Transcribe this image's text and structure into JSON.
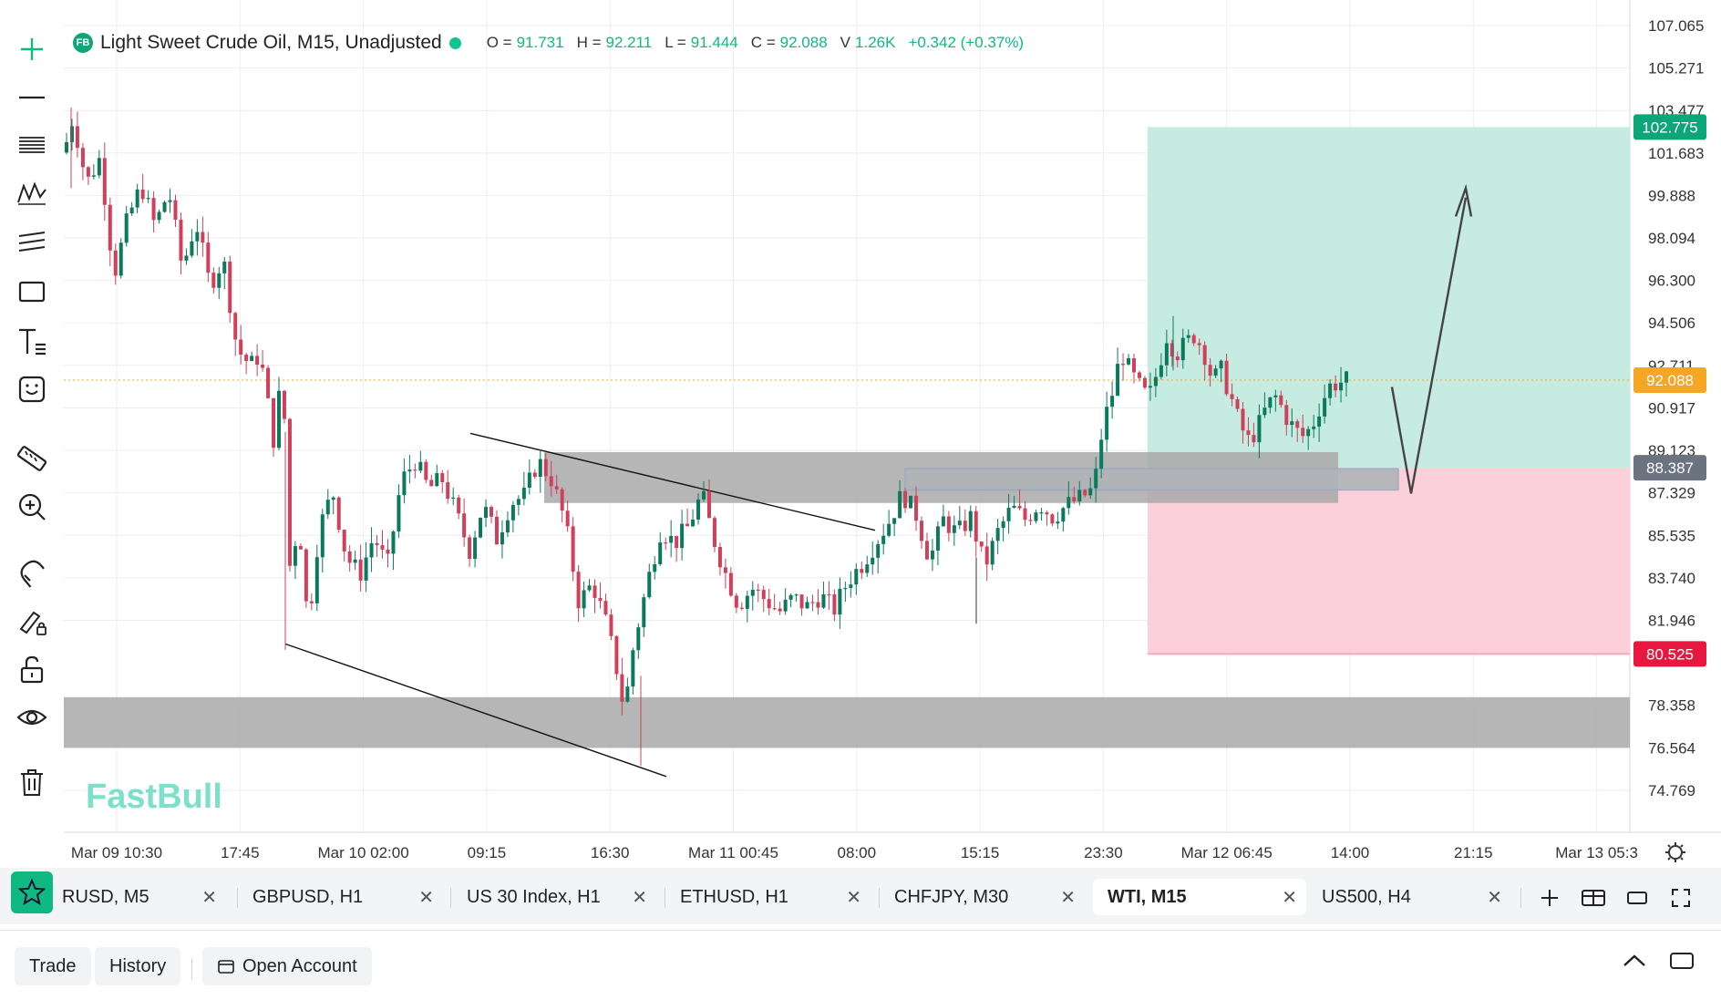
{
  "chart": {
    "symbol_badge": "FB",
    "title": "Light Sweet Crude Oil, M15, Unadjusted",
    "ohlc": [
      {
        "k": "O =",
        "v": "91.731"
      },
      {
        "k": "H =",
        "v": "92.211"
      },
      {
        "k": "L =",
        "v": "91.444"
      },
      {
        "k": "C =",
        "v": "92.088"
      },
      {
        "k": "V",
        "v": "1.26K"
      }
    ],
    "change": "+0.342 (+0.37%)",
    "watermark": "FastBull",
    "price_axis": [
      "107.065",
      "105.271",
      "103.477",
      "101.683",
      "99.888",
      "98.094",
      "96.300",
      "94.506",
      "92.711",
      "90.917",
      "89.123",
      "87.329",
      "85.535",
      "83.740",
      "81.946",
      "78.358",
      "76.564",
      "74.769"
    ],
    "price_badges": [
      {
        "label": "102.775",
        "color": "#0ca678"
      },
      {
        "label": "92.088",
        "color": "#f5a623"
      },
      {
        "label": "88.387",
        "color": "#6b7280"
      },
      {
        "label": "80.525",
        "color": "#e8173f"
      }
    ],
    "time_axis": [
      "Mar 09 10:30",
      "17:45",
      "Mar 10 02:00",
      "09:15",
      "16:30",
      "Mar 11 00:45",
      "08:00",
      "15:15",
      "23:30",
      "Mar 12 06:45",
      "14:00",
      "21:15",
      "Mar 13 05:3"
    ],
    "colors": {
      "up": "#0b7a5c",
      "down": "#d0405a",
      "profit_zone": "#c6ebe0",
      "loss_zone": "#fcd0db",
      "zone": "#a9a9a9"
    }
  },
  "toolbar": {
    "icons": [
      "crosshair-icon",
      "horizontal-line-icon",
      "fib-lines-icon",
      "pattern-icon",
      "parallel-channel-icon",
      "rectangle-icon",
      "text-icon",
      "emoji-icon",
      "ruler-icon",
      "zoom-in-icon",
      "magnet-icon",
      "brush-lock-icon",
      "unlock-icon",
      "eye-icon",
      "trash-icon"
    ]
  },
  "tabs": [
    {
      "label": "RUSD, M5",
      "active": false
    },
    {
      "label": "GBPUSD, H1",
      "active": false
    },
    {
      "label": "US 30 Index, H1",
      "active": false
    },
    {
      "label": "ETHUSD, H1",
      "active": false
    },
    {
      "label": "CHFJPY, M30",
      "active": false
    },
    {
      "label": "WTI, M15",
      "active": true
    },
    {
      "label": "US500, H4",
      "active": false
    }
  ],
  "tab_close": "✕",
  "footer": {
    "trade": "Trade",
    "history": "History",
    "open_account": "Open Account"
  }
}
